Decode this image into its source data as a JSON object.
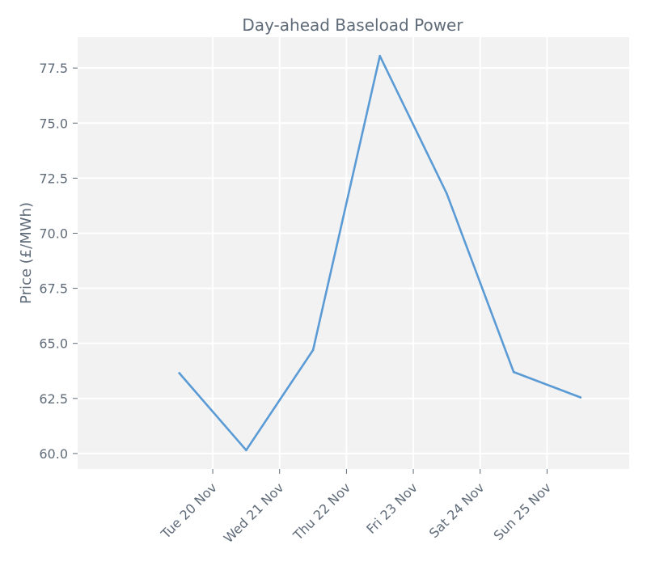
{
  "chart_data": {
    "type": "line",
    "title": "Day-ahead Baseload Power",
    "xlabel": "",
    "ylabel": "Price (£/MWh)",
    "x": [
      "2018-11-19 12:00",
      "2018-11-20 12:00",
      "2018-11-21 12:00",
      "2018-11-22 12:00",
      "2018-11-23 12:00",
      "2018-11-24 12:00",
      "2018-11-25 12:00"
    ],
    "series": [
      {
        "values": [
          63.65,
          60.15,
          64.7,
          78.05,
          71.8,
          63.7,
          62.55
        ]
      }
    ],
    "x_ticks": [
      "Tue 20 Nov",
      "Wed 21 Nov",
      "Thu 22 Nov",
      "Fri 23 Nov",
      "Sat 24 Nov",
      "Sun 25 Nov"
    ],
    "y_ticks": [
      "60.0",
      "62.5",
      "65.0",
      "67.5",
      "70.0",
      "72.5",
      "75.0",
      "77.5"
    ],
    "ylim": [
      59.3,
      78.9
    ],
    "grid": true,
    "colors": {
      "line": "#5b9bd5",
      "plot_bg": "#f2f2f2",
      "grid": "#ffffff",
      "text": "#5f6b78"
    }
  }
}
